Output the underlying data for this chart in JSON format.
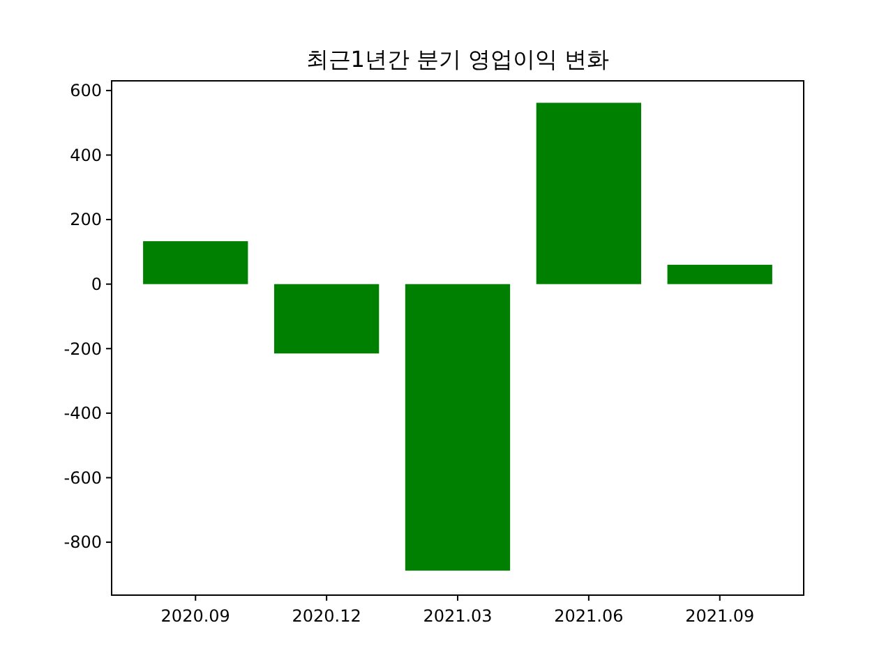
{
  "chart_data": {
    "type": "bar",
    "title": "최근1년간 분기 영업이익 변화",
    "categories": [
      "2020.09",
      "2020.12",
      "2021.03",
      "2021.06",
      "2021.09"
    ],
    "values": [
      133,
      -215,
      -888,
      562,
      60
    ],
    "color": "#008000",
    "ylim": [
      -964,
      630
    ],
    "yticks": [
      -800,
      -600,
      -400,
      -200,
      0,
      200,
      400,
      600
    ],
    "grid": false
  }
}
